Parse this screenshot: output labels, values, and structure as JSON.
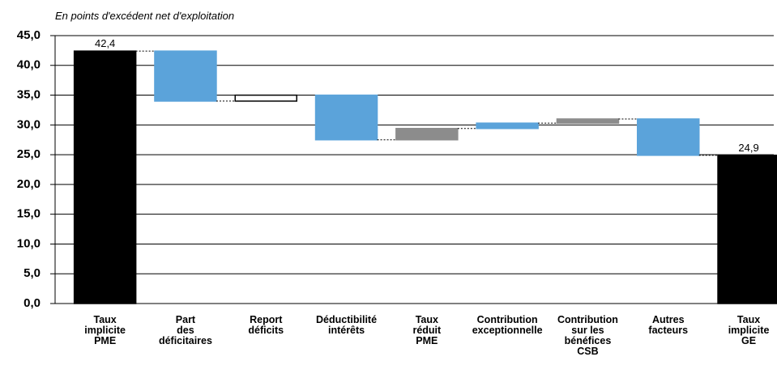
{
  "chart_data": {
    "type": "waterfall",
    "title": "En points d'excédent net d'exploitation",
    "categories": [
      [
        "Taux",
        "implicite",
        "PME"
      ],
      [
        "Part",
        "des",
        "déficitaires"
      ],
      [
        "Report",
        "déficits"
      ],
      [
        "Déductibilité",
        "intérêts"
      ],
      [
        "Taux",
        "réduit",
        "PME"
      ],
      [
        "Contribution",
        "exceptionnelle"
      ],
      [
        "Contribution",
        "sur les",
        "bénéfices",
        "CSB"
      ],
      [
        "Autres",
        "facteurs"
      ],
      [
        "Taux",
        "implicite",
        "GE"
      ]
    ],
    "values": [
      42.4,
      -8.4,
      1.0,
      -7.5,
      1.9,
      0.9,
      0.7,
      -6.1,
      24.9
    ],
    "value_labels": [
      "42,4",
      null,
      null,
      null,
      null,
      null,
      null,
      null,
      "24,9"
    ],
    "measures": [
      "absolute",
      "relative",
      "relative",
      "relative",
      "relative",
      "relative",
      "relative",
      "relative",
      "total"
    ],
    "colors": [
      "#000000",
      "#5ba3da",
      "#ffffff",
      "#5ba3da",
      "#8c8c8c",
      "#5ba3da",
      "#8c8c8c",
      "#5ba3da",
      "#000000"
    ],
    "edge_colors": [
      "#000000",
      "#5ba3da",
      "#000000",
      "#5ba3da",
      "#8c8c8c",
      "#5ba3da",
      "#8c8c8c",
      "#5ba3da",
      "#000000"
    ],
    "ylim": [
      0,
      45
    ],
    "yticks": [
      {
        "value": 0,
        "label": "0,0"
      },
      {
        "value": 5,
        "label": "5,0"
      },
      {
        "value": 10,
        "label": "10,0"
      },
      {
        "value": 15,
        "label": "15,0"
      },
      {
        "value": 20,
        "label": "20,0"
      },
      {
        "value": 25,
        "label": "25,0"
      },
      {
        "value": 30,
        "label": "30,0"
      },
      {
        "value": 35,
        "label": "35,0"
      },
      {
        "value": 40,
        "label": "40,0"
      },
      {
        "value": 45,
        "label": "45,0"
      }
    ],
    "grid": true
  }
}
